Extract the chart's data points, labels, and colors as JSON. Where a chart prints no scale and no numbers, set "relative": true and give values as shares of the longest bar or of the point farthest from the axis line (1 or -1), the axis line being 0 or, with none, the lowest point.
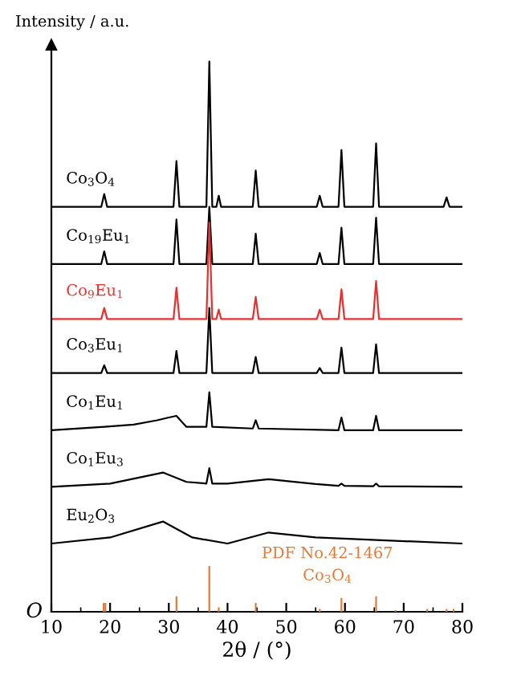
{
  "chart_data": {
    "type": "line",
    "relative": true,
    "xlabel": "2θ / (°)",
    "ylabel": "Intensity / a.u.",
    "xlim": [
      10,
      80
    ],
    "xticks": [
      10,
      20,
      30,
      40,
      50,
      60,
      70,
      80
    ],
    "tick_labels": "x",
    "grid": false,
    "marker": "none",
    "line_style": "solid",
    "annotations": [
      "O"
    ],
    "series": [
      {
        "name": "Co$_{3}$O$_{4}$",
        "color": "#000000",
        "x": [
          10,
          18.5,
          19,
          19.5,
          30.8,
          31.3,
          31.8,
          36.4,
          36.9,
          37.4,
          38.1,
          38.5,
          38.9,
          44.3,
          44.8,
          45.3,
          55.2,
          55.7,
          56.2,
          58.9,
          59.4,
          59.9,
          64.8,
          65.3,
          65.8,
          76.8,
          77.3,
          77.8,
          80
        ],
        "values": [
          0.736,
          0.736,
          0.759,
          0.736,
          0.736,
          0.819,
          0.736,
          0.736,
          1.0,
          0.736,
          0.736,
          0.756,
          0.736,
          0.736,
          0.802,
          0.736,
          0.736,
          0.756,
          0.736,
          0.736,
          0.839,
          0.736,
          0.736,
          0.851,
          0.736,
          0.736,
          0.753,
          0.736,
          0.736
        ]
      },
      {
        "name": "Co$_{19}$Eu$_{1}$",
        "color": "#000000",
        "x": [
          10,
          18.5,
          19,
          19.5,
          30.8,
          31.3,
          31.8,
          36.4,
          36.9,
          37.4,
          44.3,
          44.8,
          45.3,
          55.2,
          55.7,
          56.2,
          58.9,
          59.4,
          59.9,
          64.8,
          65.3,
          65.8,
          80
        ],
        "values": [
          0.632,
          0.632,
          0.655,
          0.632,
          0.632,
          0.713,
          0.632,
          0.632,
          0.736,
          0.632,
          0.632,
          0.687,
          0.632,
          0.632,
          0.652,
          0.632,
          0.632,
          0.698,
          0.632,
          0.632,
          0.716,
          0.632,
          0.632
        ]
      },
      {
        "name": "Co$_{9}$Eu$_{1}$",
        "color": "#e8302e",
        "x": [
          10,
          18.5,
          19,
          19.5,
          30.8,
          31.3,
          31.8,
          36.4,
          36.9,
          37.4,
          38.1,
          38.5,
          38.9,
          44.3,
          44.8,
          45.3,
          55.2,
          55.7,
          56.2,
          58.9,
          59.4,
          59.9,
          64.8,
          65.3,
          65.8,
          80
        ],
        "values": [
          0.532,
          0.532,
          0.552,
          0.532,
          0.532,
          0.589,
          0.532,
          0.532,
          0.707,
          0.532,
          0.532,
          0.549,
          0.532,
          0.532,
          0.572,
          0.532,
          0.532,
          0.549,
          0.532,
          0.532,
          0.586,
          0.532,
          0.532,
          0.601,
          0.532,
          0.532
        ]
      },
      {
        "name": "Co$_{3}$Eu$_{1}$",
        "color": "#000000",
        "x": [
          10,
          18.5,
          19,
          19.5,
          30.8,
          31.3,
          31.8,
          36.4,
          36.9,
          37.4,
          44.3,
          44.8,
          45.3,
          55.2,
          55.7,
          56.2,
          58.9,
          59.4,
          59.9,
          64.8,
          65.3,
          65.8,
          80
        ],
        "values": [
          0.434,
          0.434,
          0.448,
          0.434,
          0.434,
          0.474,
          0.434,
          0.434,
          0.552,
          0.434,
          0.434,
          0.463,
          0.434,
          0.434,
          0.443,
          0.434,
          0.434,
          0.48,
          0.434,
          0.434,
          0.486,
          0.434,
          0.434
        ]
      },
      {
        "name": "Co$_{1}$Eu$_{1}$",
        "color": "#000000",
        "x": [
          10,
          19,
          24,
          28,
          30,
          31.3,
          33,
          36.4,
          36.9,
          37.4,
          44.3,
          44.8,
          45.3,
          58.9,
          59.4,
          59.9,
          64.8,
          65.3,
          65.8,
          80
        ],
        "values": [
          0.33,
          0.336,
          0.34,
          0.348,
          0.353,
          0.356,
          0.336,
          0.336,
          0.399,
          0.336,
          0.333,
          0.348,
          0.333,
          0.33,
          0.353,
          0.33,
          0.33,
          0.356,
          0.33,
          0.33
        ]
      },
      {
        "name": "Co$_{1}$Eu$_{3}$",
        "color": "#000000",
        "x": [
          10,
          20,
          29,
          33,
          36.4,
          36.9,
          37.4,
          40,
          47,
          55,
          58.9,
          59.4,
          59.9,
          64.8,
          65.3,
          65.8,
          80
        ],
        "values": [
          0.227,
          0.233,
          0.253,
          0.236,
          0.233,
          0.261,
          0.233,
          0.233,
          0.241,
          0.232,
          0.229,
          0.233,
          0.229,
          0.228,
          0.233,
          0.228,
          0.227
        ]
      },
      {
        "name": "Eu$_{2}$O$_{3}$",
        "color": "#000000",
        "x": [
          10,
          20,
          29,
          34,
          40,
          47,
          55,
          80
        ],
        "values": [
          0.124,
          0.135,
          0.164,
          0.135,
          0.124,
          0.144,
          0.135,
          0.124
        ]
      },
      {
        "name": "PDF No.42-1467\nCo$_{3}$O$_{4}$",
        "type": "bar",
        "color": "#e07a3a",
        "x": [
          18.9,
          19.2,
          31.3,
          36.9,
          38.5,
          44.8,
          55.7,
          59.4,
          65.3,
          68.6,
          74,
          77.3,
          78.5
        ],
        "values": [
          0.016,
          0.016,
          0.028,
          0.083,
          0.008,
          0.016,
          0.005,
          0.025,
          0.028,
          0.003,
          0.005,
          0.005,
          0.005
        ]
      }
    ]
  }
}
